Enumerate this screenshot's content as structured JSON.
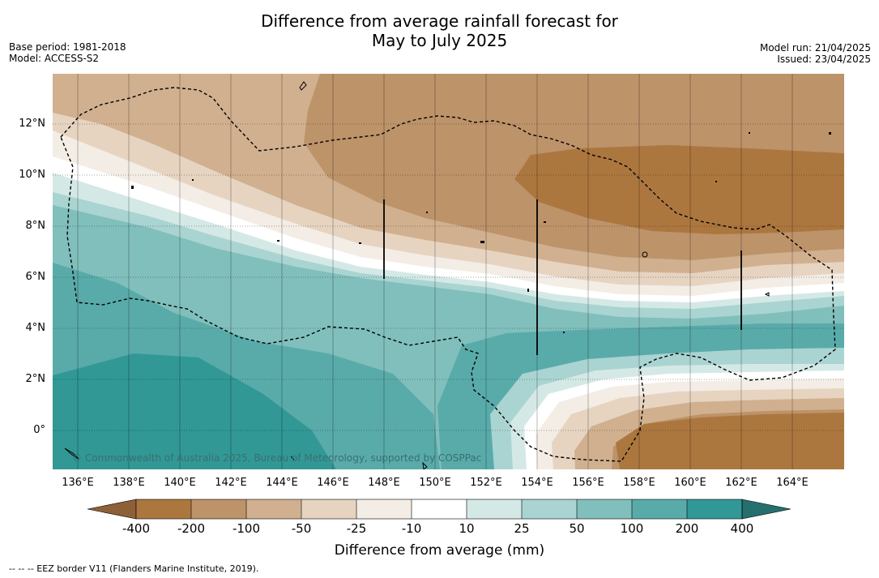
{
  "title_line1": "Difference from average rainfall forecast for",
  "title_line2": "May to July 2025",
  "meta_left": [
    "Base period: 1981-2018",
    "Model: ACCESS-S2"
  ],
  "meta_right": [
    "Model run: 21/04/2025",
    "Issued: 23/04/2025"
  ],
  "lat_labels": [
    "12°N",
    "10°N",
    "8°N",
    "6°N",
    "4°N",
    "2°N",
    "0°"
  ],
  "lon_labels": [
    "136°E",
    "138°E",
    "140°E",
    "142°E",
    "144°E",
    "146°E",
    "148°E",
    "150°E",
    "152°E",
    "154°E",
    "156°E",
    "158°E",
    "160°E",
    "162°E",
    "164°E"
  ],
  "copyright": "© Commonwealth of Australia 2025, Bureau of Meteorology, supported by COSPPac",
  "colorbar": {
    "labels": [
      "-400",
      "-200",
      "-100",
      "-50",
      "-25",
      "-10",
      "10",
      "25",
      "50",
      "100",
      "200",
      "400"
    ],
    "colors": [
      "#8e6038",
      "#ac773f",
      "#bd936a",
      "#d1b08f",
      "#e6d4c1",
      "#f3ede6",
      "#ffffff",
      "#d4e9e6",
      "#aad4d1",
      "#80bfbc",
      "#59abaa",
      "#319896",
      "#25706f"
    ],
    "title": "Difference from average (mm)"
  },
  "footnote": "--  --  -- EEZ border V11 (Flanders Marine Institute, 2019)."
}
